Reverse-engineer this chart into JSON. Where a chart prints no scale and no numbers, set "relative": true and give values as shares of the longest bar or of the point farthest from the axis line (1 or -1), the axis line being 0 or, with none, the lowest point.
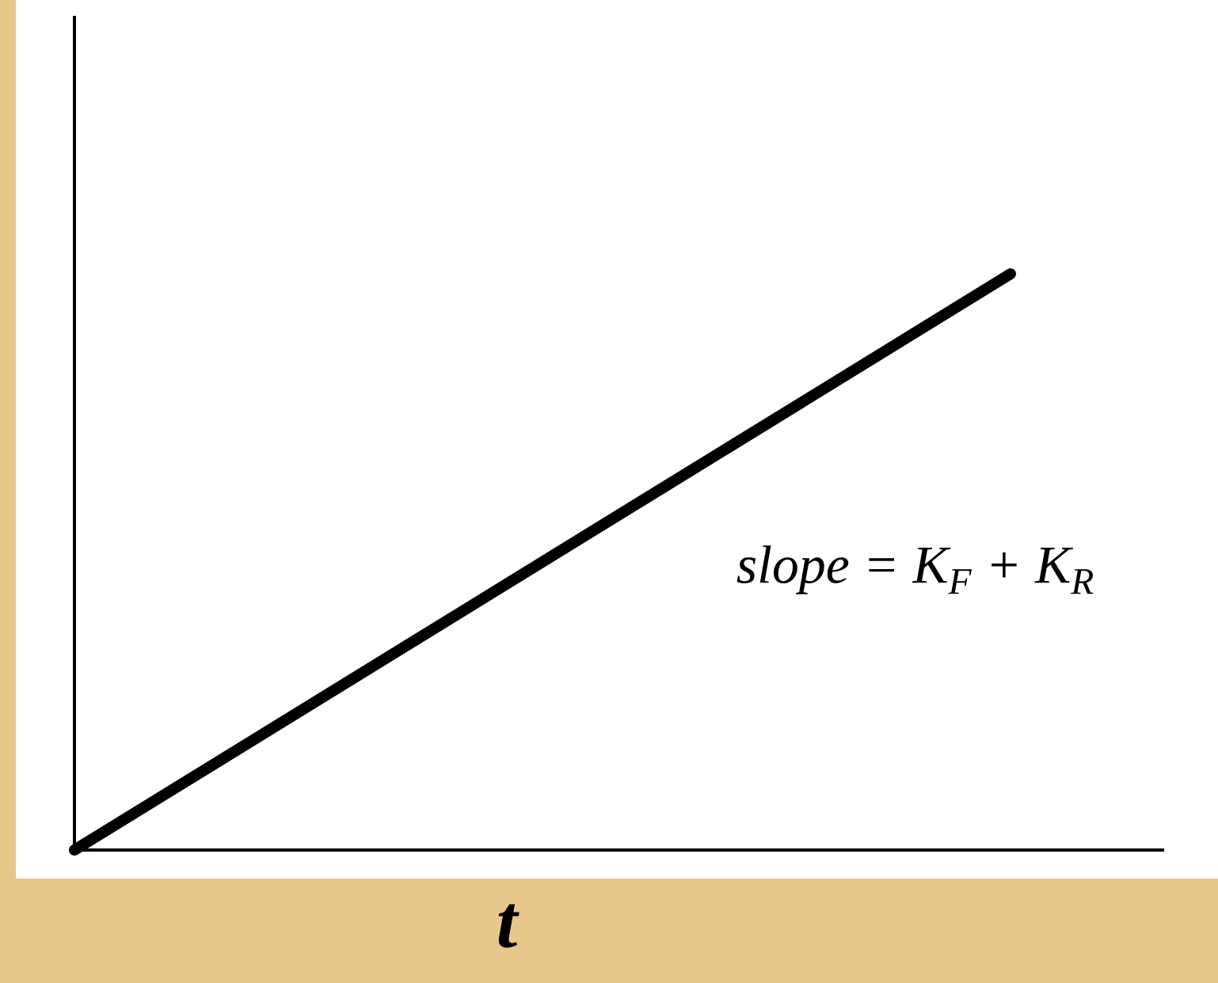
{
  "chart_data": {
    "type": "line",
    "xlabel": "t",
    "categories": [
      null,
      null
    ],
    "relative": true,
    "series": [
      {
        "color": "#000000",
        "values": [
          0,
          1
        ]
      }
    ],
    "annotations": [
      "slope = K$_{F}$ + K$_{R}$"
    ]
  }
}
